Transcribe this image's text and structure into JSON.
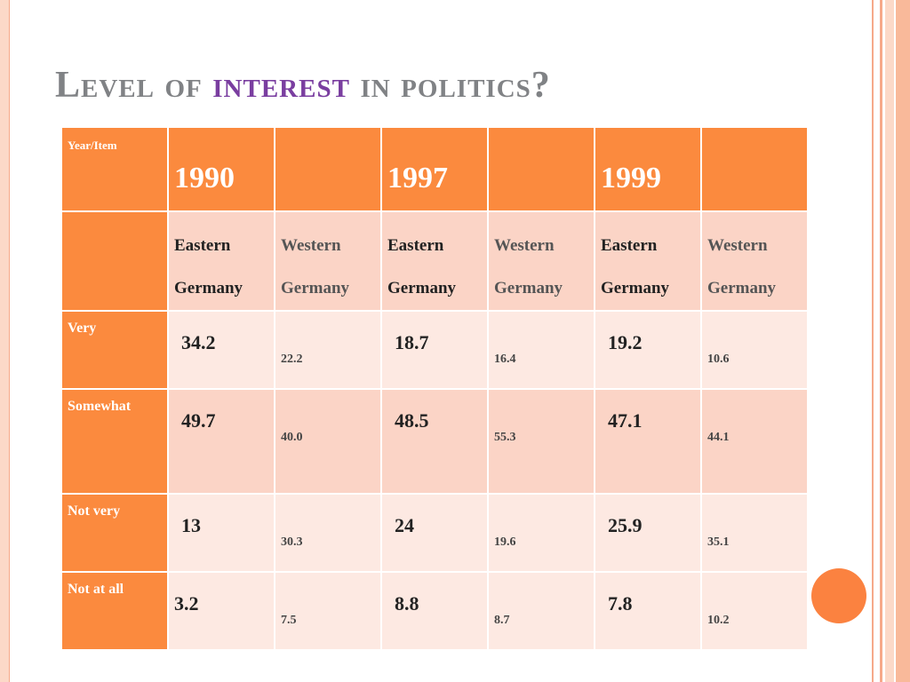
{
  "title": {
    "p1": "Level of ",
    "p2": "interest",
    "p3": " in politics?"
  },
  "corner_label": "Year/Item",
  "years": [
    "1990",
    "1997",
    "1999"
  ],
  "regions": {
    "east": [
      "Eastern",
      "Germany"
    ],
    "west": [
      "Western",
      "Germany"
    ]
  },
  "rows": [
    {
      "label": "Very",
      "values": [
        "34.2",
        "22.2",
        "18.7",
        "16.4",
        "19.2",
        "10.6"
      ]
    },
    {
      "label": "Somewhat",
      "values": [
        "49.7",
        "40.0",
        "48.5",
        "55.3",
        "47.1",
        "44.1"
      ]
    },
    {
      "label": "Not very",
      "values": [
        "13",
        "30.3",
        "24",
        "19.6",
        "25.9",
        "35.1"
      ]
    },
    {
      "label": "Not at all",
      "values": [
        "3.2",
        "7.5",
        "8.8",
        "8.7",
        "7.8",
        "10.2"
      ]
    }
  ],
  "colors": {
    "accent": "#fb8a3e",
    "title": "#808285",
    "highlight": "#7a3ea0"
  }
}
